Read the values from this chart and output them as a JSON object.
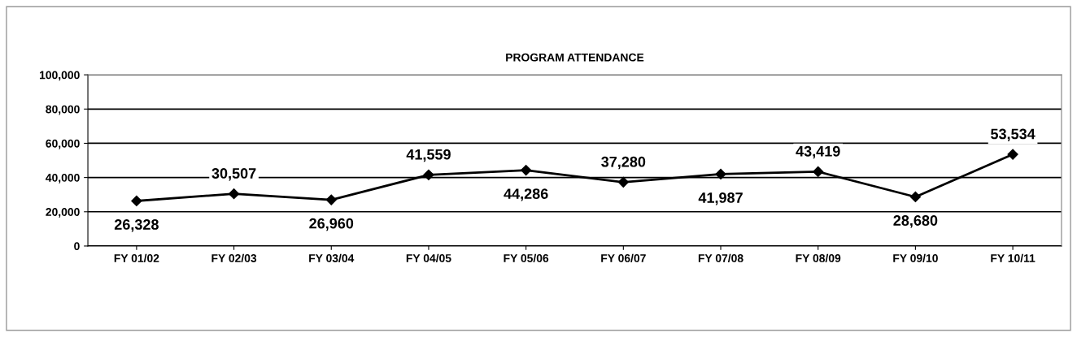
{
  "chart_data": {
    "type": "line",
    "title": "PROGRAM ATTENDANCE",
    "categories": [
      "FY 01/02",
      "FY 02/03",
      "FY 03/04",
      "FY 04/05",
      "FY 05/06",
      "FY 06/07",
      "FY 07/08",
      "FY 08/09",
      "FY 09/10",
      "FY 10/11"
    ],
    "series": [
      {
        "color": "#000000",
        "values": [
          26328,
          30507,
          26960,
          41559,
          44286,
          37280,
          41987,
          43419,
          28680,
          53534
        ],
        "value_labels": [
          "26,328",
          "30,507",
          "26,960",
          "41,559",
          "44,286",
          "37,280",
          "41,987",
          "43,419",
          "28,680",
          "53,534"
        ]
      }
    ],
    "ylim": [
      0,
      100000
    ],
    "yticks": [
      {
        "value": 0,
        "label": "0"
      },
      {
        "value": 20000,
        "label": "20,000"
      },
      {
        "value": 40000,
        "label": "40,000"
      },
      {
        "value": 60000,
        "label": "60,000"
      },
      {
        "value": 80000,
        "label": "80,000"
      },
      {
        "value": 100000,
        "label": "100,000"
      }
    ],
    "grid": "y",
    "marker": "diamond",
    "line_style": "solid"
  }
}
